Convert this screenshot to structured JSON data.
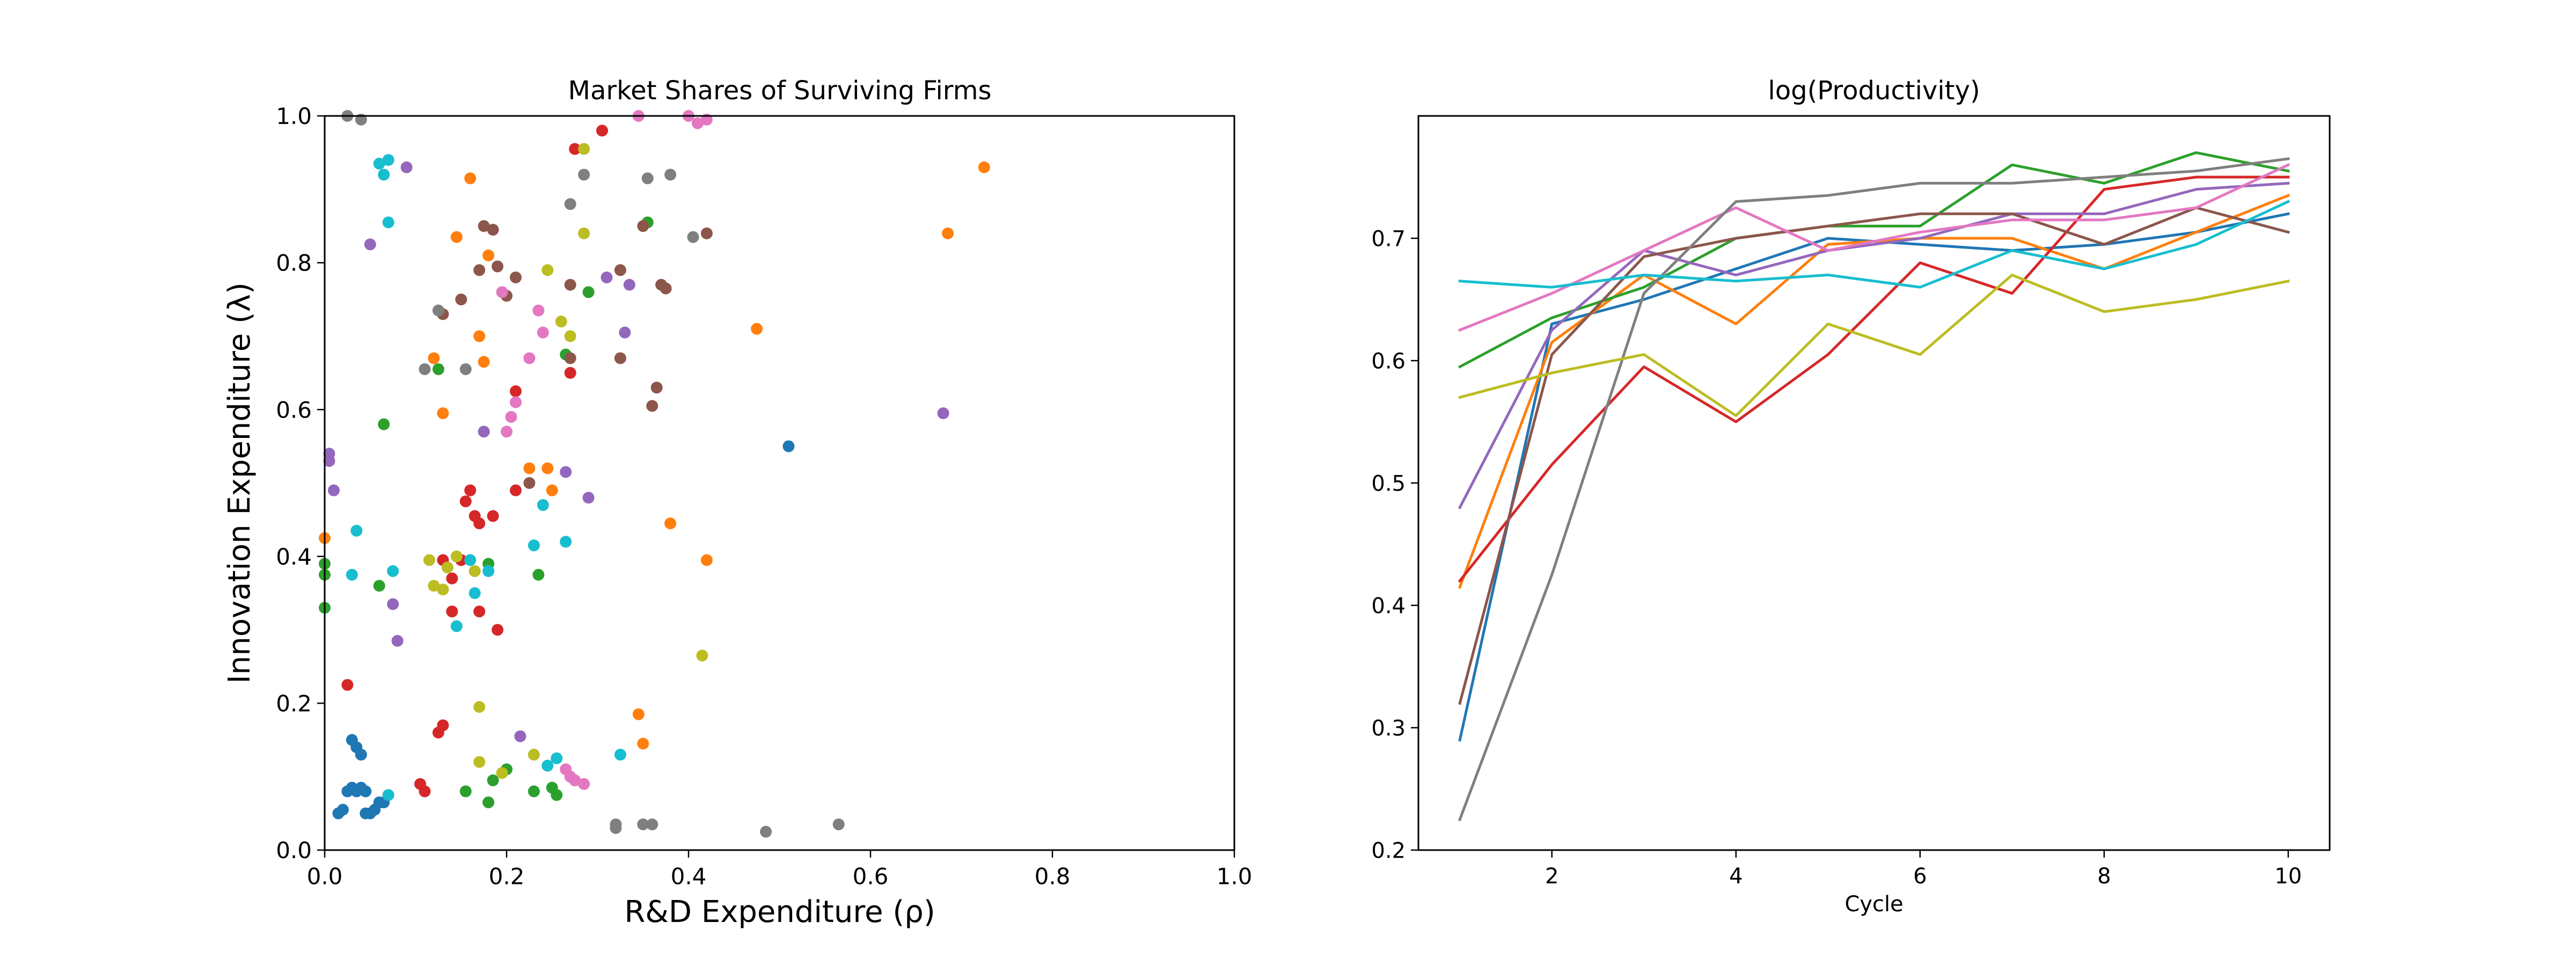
{
  "palette": [
    "#1f77b4",
    "#ff7f0e",
    "#2ca02c",
    "#d62728",
    "#9467bd",
    "#8c564b",
    "#e377c2",
    "#7f7f7f",
    "#bcbd22",
    "#17becf"
  ],
  "chart_data": [
    {
      "type": "scatter",
      "title": "Market Shares of Surviving Firms",
      "xlabel": "R&D Expenditure (ρ)",
      "ylabel": "Innovation Expenditure (λ)",
      "xlim": [
        0,
        1
      ],
      "ylim": [
        0,
        1
      ],
      "xticks": [
        0,
        0.2,
        0.4,
        0.6,
        0.8,
        1
      ],
      "yticks": [
        0,
        0.2,
        0.4,
        0.6,
        0.8,
        1
      ],
      "xtick_labels": [
        "0.0",
        "0.2",
        "0.4",
        "0.6",
        "0.8",
        "1.0"
      ],
      "ytick_labels": [
        "0.0",
        "0.2",
        "0.4",
        "0.6",
        "0.8",
        "1.0"
      ],
      "grid": false,
      "groups": [
        {
          "color": "#1f77b4",
          "points": [
            [
              0.015,
              0.05
            ],
            [
              0.02,
              0.055
            ],
            [
              0.025,
              0.08
            ],
            [
              0.03,
              0.085
            ],
            [
              0.035,
              0.08
            ],
            [
              0.04,
              0.085
            ],
            [
              0.045,
              0.08
            ],
            [
              0.03,
              0.15
            ],
            [
              0.035,
              0.14
            ],
            [
              0.04,
              0.13
            ],
            [
              0.045,
              0.05
            ],
            [
              0.05,
              0.05
            ],
            [
              0.055,
              0.055
            ],
            [
              0.06,
              0.065
            ],
            [
              0.065,
              0.065
            ],
            [
              0.51,
              0.55
            ]
          ]
        },
        {
          "color": "#ff7f0e",
          "points": [
            [
              0.0,
              0.425
            ],
            [
              0.13,
              0.595
            ],
            [
              0.12,
              0.67
            ],
            [
              0.145,
              0.835
            ],
            [
              0.16,
              0.915
            ],
            [
              0.17,
              0.7
            ],
            [
              0.18,
              0.81
            ],
            [
              0.175,
              0.665
            ],
            [
              0.225,
              0.52
            ],
            [
              0.245,
              0.52
            ],
            [
              0.25,
              0.49
            ],
            [
              0.345,
              0.185
            ],
            [
              0.35,
              0.145
            ],
            [
              0.38,
              0.445
            ],
            [
              0.42,
              0.395
            ],
            [
              0.475,
              0.71
            ],
            [
              0.685,
              0.84
            ],
            [
              0.725,
              0.93
            ]
          ]
        },
        {
          "color": "#2ca02c",
          "points": [
            [
              0.0,
              0.39
            ],
            [
              0.0,
              0.375
            ],
            [
              0.0,
              0.33
            ],
            [
              0.065,
              0.58
            ],
            [
              0.06,
              0.36
            ],
            [
              0.125,
              0.655
            ],
            [
              0.155,
              0.08
            ],
            [
              0.18,
              0.065
            ],
            [
              0.18,
              0.39
            ],
            [
              0.185,
              0.095
            ],
            [
              0.2,
              0.11
            ],
            [
              0.23,
              0.08
            ],
            [
              0.235,
              0.375
            ],
            [
              0.25,
              0.085
            ],
            [
              0.255,
              0.075
            ],
            [
              0.265,
              0.675
            ],
            [
              0.275,
              0.095
            ],
            [
              0.29,
              0.76
            ],
            [
              0.355,
              0.855
            ]
          ]
        },
        {
          "color": "#d62728",
          "points": [
            [
              0.025,
              0.225
            ],
            [
              0.105,
              0.09
            ],
            [
              0.11,
              0.08
            ],
            [
              0.125,
              0.16
            ],
            [
              0.13,
              0.17
            ],
            [
              0.13,
              0.395
            ],
            [
              0.14,
              0.37
            ],
            [
              0.14,
              0.325
            ],
            [
              0.15,
              0.395
            ],
            [
              0.155,
              0.475
            ],
            [
              0.16,
              0.49
            ],
            [
              0.165,
              0.455
            ],
            [
              0.17,
              0.445
            ],
            [
              0.17,
              0.325
            ],
            [
              0.185,
              0.455
            ],
            [
              0.19,
              0.3
            ],
            [
              0.21,
              0.625
            ],
            [
              0.21,
              0.49
            ],
            [
              0.27,
              0.65
            ],
            [
              0.275,
              0.955
            ],
            [
              0.305,
              0.98
            ]
          ]
        },
        {
          "color": "#9467bd",
          "points": [
            [
              0.005,
              0.54
            ],
            [
              0.005,
              0.53
            ],
            [
              0.01,
              0.49
            ],
            [
              0.05,
              0.825
            ],
            [
              0.075,
              0.335
            ],
            [
              0.08,
              0.285
            ],
            [
              0.09,
              0.93
            ],
            [
              0.175,
              0.57
            ],
            [
              0.215,
              0.155
            ],
            [
              0.265,
              0.515
            ],
            [
              0.29,
              0.48
            ],
            [
              0.31,
              0.78
            ],
            [
              0.33,
              0.705
            ],
            [
              0.335,
              0.77
            ],
            [
              0.68,
              0.595
            ]
          ]
        },
        {
          "color": "#8c564b",
          "points": [
            [
              0.13,
              0.73
            ],
            [
              0.15,
              0.75
            ],
            [
              0.17,
              0.79
            ],
            [
              0.175,
              0.85
            ],
            [
              0.185,
              0.845
            ],
            [
              0.19,
              0.795
            ],
            [
              0.2,
              0.755
            ],
            [
              0.21,
              0.78
            ],
            [
              0.225,
              0.5
            ],
            [
              0.27,
              0.77
            ],
            [
              0.27,
              0.67
            ],
            [
              0.325,
              0.79
            ],
            [
              0.325,
              0.67
            ],
            [
              0.35,
              0.85
            ],
            [
              0.36,
              0.605
            ],
            [
              0.365,
              0.63
            ],
            [
              0.37,
              0.77
            ],
            [
              0.375,
              0.765
            ],
            [
              0.42,
              0.84
            ]
          ]
        },
        {
          "color": "#e377c2",
          "points": [
            [
              0.195,
              0.76
            ],
            [
              0.2,
              0.57
            ],
            [
              0.205,
              0.59
            ],
            [
              0.21,
              0.61
            ],
            [
              0.225,
              0.67
            ],
            [
              0.235,
              0.735
            ],
            [
              0.24,
              0.705
            ],
            [
              0.265,
              0.11
            ],
            [
              0.27,
              0.1
            ],
            [
              0.275,
              0.095
            ],
            [
              0.285,
              0.09
            ],
            [
              0.345,
              1.0
            ],
            [
              0.4,
              1.0
            ],
            [
              0.41,
              0.99
            ],
            [
              0.42,
              0.995
            ]
          ]
        },
        {
          "color": "#7f7f7f",
          "points": [
            [
              0.025,
              1.0
            ],
            [
              0.04,
              0.995
            ],
            [
              0.11,
              0.655
            ],
            [
              0.125,
              0.735
            ],
            [
              0.155,
              0.655
            ],
            [
              0.27,
              0.88
            ],
            [
              0.285,
              0.92
            ],
            [
              0.32,
              0.035
            ],
            [
              0.32,
              0.03
            ],
            [
              0.35,
              0.035
            ],
            [
              0.36,
              0.035
            ],
            [
              0.355,
              0.915
            ],
            [
              0.38,
              0.92
            ],
            [
              0.405,
              0.835
            ],
            [
              0.485,
              0.025
            ],
            [
              0.565,
              0.035
            ]
          ]
        },
        {
          "color": "#bcbd22",
          "points": [
            [
              0.115,
              0.395
            ],
            [
              0.12,
              0.36
            ],
            [
              0.13,
              0.355
            ],
            [
              0.135,
              0.385
            ],
            [
              0.145,
              0.4
            ],
            [
              0.165,
              0.38
            ],
            [
              0.17,
              0.195
            ],
            [
              0.17,
              0.12
            ],
            [
              0.195,
              0.105
            ],
            [
              0.23,
              0.13
            ],
            [
              0.245,
              0.79
            ],
            [
              0.26,
              0.72
            ],
            [
              0.27,
              0.7
            ],
            [
              0.285,
              0.955
            ],
            [
              0.285,
              0.84
            ],
            [
              0.415,
              0.265
            ]
          ]
        },
        {
          "color": "#17becf",
          "points": [
            [
              0.03,
              0.375
            ],
            [
              0.035,
              0.435
            ],
            [
              0.06,
              0.935
            ],
            [
              0.065,
              0.92
            ],
            [
              0.07,
              0.94
            ],
            [
              0.07,
              0.855
            ],
            [
              0.07,
              0.075
            ],
            [
              0.075,
              0.38
            ],
            [
              0.145,
              0.305
            ],
            [
              0.16,
              0.395
            ],
            [
              0.165,
              0.35
            ],
            [
              0.18,
              0.38
            ],
            [
              0.23,
              0.415
            ],
            [
              0.24,
              0.47
            ],
            [
              0.245,
              0.115
            ],
            [
              0.255,
              0.125
            ],
            [
              0.265,
              0.42
            ],
            [
              0.325,
              0.13
            ]
          ]
        }
      ]
    },
    {
      "type": "line",
      "title": "log(Productivity)",
      "xlabel": "Cycle",
      "ylabel": "",
      "xlim": [
        0.55,
        10.45
      ],
      "ylim": [
        0.2,
        0.8
      ],
      "xticks": [
        2,
        4,
        6,
        8,
        10
      ],
      "yticks": [
        0.2,
        0.3,
        0.4,
        0.5,
        0.6,
        0.7
      ],
      "xtick_labels": [
        "2",
        "4",
        "6",
        "8",
        "10"
      ],
      "ytick_labels": [
        "0.2",
        "0.3",
        "0.4",
        "0.5",
        "0.6",
        "0.7"
      ],
      "grid": false,
      "x": [
        1,
        2,
        3,
        4,
        5,
        6,
        7,
        8,
        9,
        10
      ],
      "series": [
        {
          "color": "#1f77b4",
          "values": [
            0.29,
            0.63,
            0.65,
            0.675,
            0.7,
            0.695,
            0.69,
            0.695,
            0.705,
            0.72
          ]
        },
        {
          "color": "#ff7f0e",
          "values": [
            0.415,
            0.615,
            0.67,
            0.63,
            0.695,
            0.7,
            0.7,
            0.675,
            0.705,
            0.735
          ]
        },
        {
          "color": "#2ca02c",
          "values": [
            0.595,
            0.635,
            0.66,
            0.7,
            0.71,
            0.71,
            0.76,
            0.745,
            0.77,
            0.755
          ]
        },
        {
          "color": "#d62728",
          "values": [
            0.42,
            0.515,
            0.595,
            0.55,
            0.605,
            0.68,
            0.655,
            0.74,
            0.75,
            0.75
          ]
        },
        {
          "color": "#9467bd",
          "values": [
            0.48,
            0.625,
            0.69,
            0.67,
            0.69,
            0.7,
            0.72,
            0.72,
            0.74,
            0.745
          ]
        },
        {
          "color": "#8c564b",
          "values": [
            0.32,
            0.605,
            0.685,
            0.7,
            0.71,
            0.72,
            0.72,
            0.695,
            0.725,
            0.705
          ]
        },
        {
          "color": "#e377c2",
          "values": [
            0.625,
            0.655,
            0.69,
            0.725,
            0.69,
            0.705,
            0.715,
            0.715,
            0.725,
            0.76
          ]
        },
        {
          "color": "#7f7f7f",
          "values": [
            0.225,
            0.425,
            0.655,
            0.73,
            0.735,
            0.745,
            0.745,
            0.75,
            0.755,
            0.765
          ]
        },
        {
          "color": "#bcbd22",
          "values": [
            0.57,
            0.59,
            0.605,
            0.555,
            0.63,
            0.605,
            0.67,
            0.64,
            0.65,
            0.665
          ]
        },
        {
          "color": "#17becf",
          "values": [
            0.665,
            0.66,
            0.67,
            0.665,
            0.67,
            0.66,
            0.69,
            0.675,
            0.695,
            0.73
          ]
        }
      ]
    }
  ]
}
